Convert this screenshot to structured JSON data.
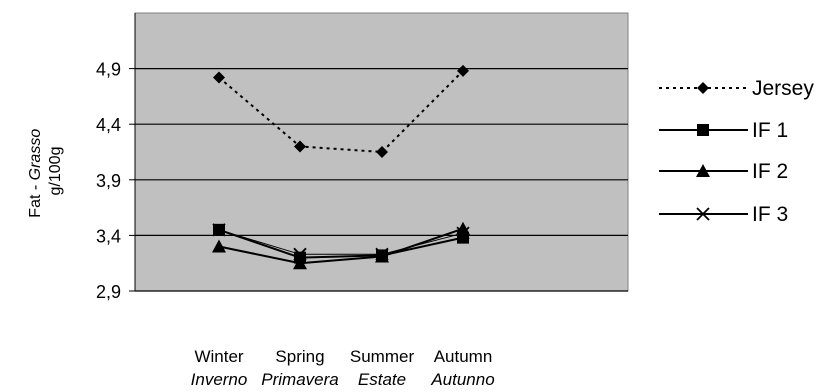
{
  "chart_data": {
    "type": "line",
    "ylabel": {
      "line1_plain": "Fat - ",
      "line1_italic": "Grasso",
      "line2": "g/100g"
    },
    "ylim": [
      2.9,
      5.4
    ],
    "yticks": [
      2.9,
      3.4,
      3.9,
      4.4,
      4.9
    ],
    "ytick_labels": [
      "2,9",
      "3,4",
      "3,9",
      "4,4",
      "4,9"
    ],
    "categories": [
      "Winter",
      "Spring",
      "Summer",
      "Autumn"
    ],
    "categories_italian": [
      "Inverno",
      "Primavera",
      "Estate",
      "Autunno"
    ],
    "grid": "horizontal",
    "plot_background": "#c0c0c0",
    "legend_position": "right",
    "series": [
      {
        "name": "Jersey",
        "values": [
          4.82,
          4.2,
          4.15,
          4.88
        ],
        "marker": "diamond",
        "style": "dotted"
      },
      {
        "name": "IF 1",
        "values": [
          3.45,
          3.2,
          3.22,
          3.38
        ],
        "marker": "square",
        "style": "solid"
      },
      {
        "name": "IF 2",
        "values": [
          3.3,
          3.15,
          3.21,
          3.46
        ],
        "marker": "triangle",
        "style": "solid"
      },
      {
        "name": "IF 3",
        "values": [
          3.45,
          3.23,
          3.23,
          3.42
        ],
        "marker": "x",
        "style": "solid"
      }
    ]
  }
}
